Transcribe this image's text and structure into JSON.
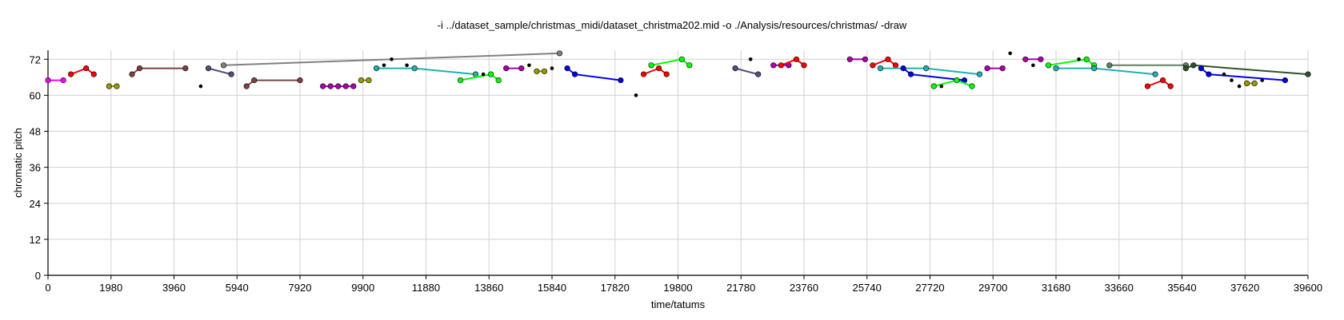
{
  "chart_data": {
    "type": "scatter",
    "title": "-i ../dataset_sample/christmas_midi/dataset_christma202.mid -o ./Analysis/resources/christmas/ -draw",
    "xlabel": "time/tatums",
    "ylabel": "chromatic pitch",
    "xlim": [
      0,
      39600
    ],
    "ylim": [
      0,
      75
    ],
    "xticks": [
      0,
      1980,
      3960,
      5940,
      7920,
      9900,
      11880,
      13860,
      15840,
      17820,
      19800,
      21780,
      23760,
      25740,
      27720,
      29700,
      31680,
      33660,
      35640,
      37620,
      39600
    ],
    "yticks": [
      0,
      12,
      24,
      36,
      48,
      60,
      72
    ],
    "grid": true,
    "series": [
      {
        "color": "#ff00ff",
        "points": [
          [
            0,
            65
          ],
          [
            480,
            65
          ]
        ]
      },
      {
        "color": "#ff0000",
        "points": [
          [
            720,
            67
          ],
          [
            1200,
            69
          ],
          [
            1440,
            67
          ]
        ]
      },
      {
        "color": "#999900",
        "points": [
          [
            1920,
            63
          ],
          [
            2160,
            63
          ]
        ]
      },
      {
        "color": "#804040",
        "points": [
          [
            2640,
            67
          ],
          [
            2880,
            69
          ],
          [
            4320,
            69
          ]
        ]
      },
      {
        "color": "#000000",
        "points": [
          [
            4800,
            63
          ]
        ]
      },
      {
        "color": "#505080",
        "points": [
          [
            5040,
            69
          ],
          [
            5760,
            67
          ]
        ]
      },
      {
        "color": "#808080",
        "points": [
          [
            5520,
            70
          ],
          [
            16080,
            74
          ]
        ]
      },
      {
        "color": "#804040",
        "points": [
          [
            6240,
            63
          ],
          [
            6480,
            65
          ],
          [
            7920,
            65
          ]
        ]
      },
      {
        "color": "#aa00aa",
        "points": [
          [
            8640,
            63
          ],
          [
            8880,
            63
          ],
          [
            9120,
            63
          ],
          [
            9360,
            63
          ],
          [
            9600,
            63
          ]
        ]
      },
      {
        "color": "#999900",
        "points": [
          [
            9840,
            65
          ],
          [
            10080,
            65
          ]
        ]
      },
      {
        "color": "#20b0b0",
        "points": [
          [
            10320,
            69
          ],
          [
            11520,
            69
          ],
          [
            13440,
            67
          ]
        ]
      },
      {
        "color": "#000000",
        "points": [
          [
            10560,
            70
          ]
        ]
      },
      {
        "color": "#000000",
        "points": [
          [
            10800,
            72
          ]
        ]
      },
      {
        "color": "#000000",
        "points": [
          [
            11280,
            70
          ]
        ]
      },
      {
        "color": "#00ff00",
        "points": [
          [
            12960,
            65
          ],
          [
            13920,
            67
          ],
          [
            14160,
            65
          ]
        ]
      },
      {
        "color": "#000000",
        "points": [
          [
            13680,
            67
          ]
        ]
      },
      {
        "color": "#aa00aa",
        "points": [
          [
            14400,
            69
          ],
          [
            14880,
            69
          ]
        ]
      },
      {
        "color": "#000000",
        "points": [
          [
            15120,
            70
          ]
        ]
      },
      {
        "color": "#999900",
        "points": [
          [
            15360,
            68
          ],
          [
            15600,
            68
          ]
        ]
      },
      {
        "color": "#000000",
        "points": [
          [
            15840,
            69
          ]
        ]
      },
      {
        "color": "#0000ee",
        "points": [
          [
            16320,
            69
          ],
          [
            16560,
            67
          ],
          [
            18000,
            65
          ]
        ]
      },
      {
        "color": "#000000",
        "points": [
          [
            18480,
            60
          ]
        ]
      },
      {
        "color": "#ff0000",
        "points": [
          [
            18720,
            67
          ],
          [
            19200,
            69
          ],
          [
            19440,
            67
          ]
        ]
      },
      {
        "color": "#00ff00",
        "points": [
          [
            18960,
            70
          ],
          [
            19920,
            72
          ],
          [
            20160,
            70
          ]
        ]
      },
      {
        "color": "#505080",
        "points": [
          [
            21600,
            69
          ],
          [
            22320,
            67
          ]
        ]
      },
      {
        "color": "#000000",
        "points": [
          [
            22080,
            72
          ]
        ]
      },
      {
        "color": "#aa00aa",
        "points": [
          [
            22800,
            70
          ],
          [
            23280,
            70
          ]
        ]
      },
      {
        "color": "#ff0000",
        "points": [
          [
            23040,
            70
          ],
          [
            23520,
            72
          ],
          [
            23760,
            70
          ]
        ]
      },
      {
        "color": "#aa00aa",
        "points": [
          [
            25200,
            72
          ],
          [
            25680,
            72
          ]
        ]
      },
      {
        "color": "#ff0000",
        "points": [
          [
            25920,
            70
          ],
          [
            26400,
            72
          ],
          [
            26640,
            70
          ]
        ]
      },
      {
        "color": "#20b0b0",
        "points": [
          [
            26160,
            69
          ],
          [
            27600,
            69
          ],
          [
            29280,
            67
          ]
        ]
      },
      {
        "color": "#0000ee",
        "points": [
          [
            26880,
            69
          ],
          [
            27120,
            67
          ],
          [
            28800,
            65
          ]
        ]
      },
      {
        "color": "#00ff00",
        "points": [
          [
            27840,
            63
          ],
          [
            28560,
            65
          ],
          [
            29040,
            63
          ]
        ]
      },
      {
        "color": "#000000",
        "points": [
          [
            28080,
            63
          ]
        ]
      },
      {
        "color": "#aa00aa",
        "points": [
          [
            29520,
            69
          ],
          [
            30000,
            69
          ]
        ]
      },
      {
        "color": "#000000",
        "points": [
          [
            30240,
            74
          ]
        ]
      },
      {
        "color": "#aa00aa",
        "points": [
          [
            30720,
            72
          ],
          [
            31200,
            72
          ]
        ]
      },
      {
        "color": "#000000",
        "points": [
          [
            30960,
            70
          ]
        ]
      },
      {
        "color": "#00ff00",
        "points": [
          [
            31440,
            70
          ],
          [
            32640,
            72
          ],
          [
            32880,
            70
          ]
        ]
      },
      {
        "color": "#20b0b0",
        "points": [
          [
            31680,
            69
          ],
          [
            32880,
            69
          ],
          [
            34800,
            67
          ]
        ]
      },
      {
        "color": "#000000",
        "points": [
          [
            32400,
            72
          ]
        ]
      },
      {
        "color": "#608060",
        "points": [
          [
            33360,
            70
          ],
          [
            35760,
            70
          ]
        ]
      },
      {
        "color": "#ff0000",
        "points": [
          [
            34560,
            63
          ],
          [
            35040,
            65
          ],
          [
            35280,
            63
          ]
        ]
      },
      {
        "color": "#305030",
        "points": [
          [
            35760,
            69
          ],
          [
            36000,
            70
          ],
          [
            39600,
            67
          ]
        ]
      },
      {
        "color": "#0000ee",
        "points": [
          [
            36240,
            69
          ],
          [
            36480,
            67
          ],
          [
            38880,
            65
          ]
        ]
      },
      {
        "color": "#000000",
        "points": [
          [
            36960,
            67
          ]
        ]
      },
      {
        "color": "#000000",
        "points": [
          [
            37200,
            65
          ]
        ]
      },
      {
        "color": "#000000",
        "points": [
          [
            37440,
            63
          ]
        ]
      },
      {
        "color": "#999900",
        "points": [
          [
            37680,
            64
          ],
          [
            37920,
            64
          ]
        ]
      },
      {
        "color": "#000000",
        "points": [
          [
            38160,
            65
          ]
        ]
      }
    ]
  }
}
